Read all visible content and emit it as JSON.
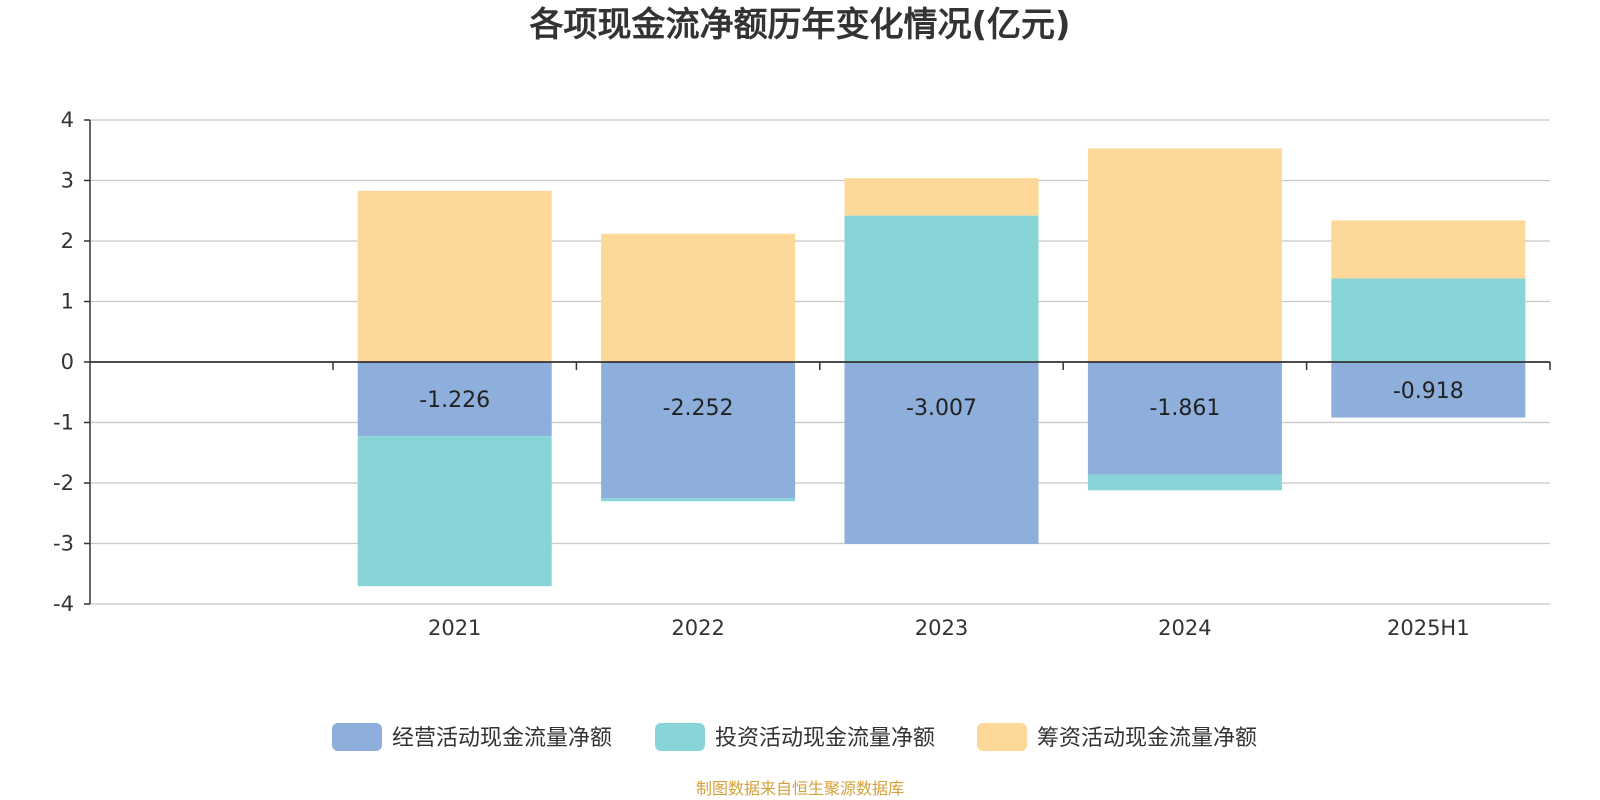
{
  "chart_data": {
    "type": "bar",
    "stacked": true,
    "title": "各项现金流净额历年变化情况(亿元)",
    "categories": [
      "2021",
      "2022",
      "2023",
      "2024",
      "2025H1"
    ],
    "series": [
      {
        "name": "经营活动现金流量净额",
        "color": "#8eaedb",
        "values": [
          -1.226,
          -2.252,
          -3.007,
          -1.861,
          -0.918
        ],
        "labels": [
          "-1.226",
          "-2.252",
          "-3.007",
          "-1.861",
          "-0.918"
        ]
      },
      {
        "name": "投资活动现金流量净额",
        "color": "#88d5d8",
        "values": [
          -2.48,
          -0.05,
          2.42,
          -0.26,
          1.38
        ]
      },
      {
        "name": "筹资活动现金流量净额",
        "color": "#fed899",
        "values": [
          2.83,
          2.12,
          0.62,
          3.53,
          0.96
        ]
      }
    ],
    "ylim": [
      -4,
      4
    ],
    "yticks": [
      4,
      3,
      2,
      1,
      0,
      -1,
      -2,
      -3,
      -4
    ],
    "grid": true,
    "legend": "bottom-center",
    "xlabel": "",
    "ylabel": ""
  },
  "footer": {
    "source": "制图数据来自恒生聚源数据库",
    "source_color": "#d4a13b"
  }
}
